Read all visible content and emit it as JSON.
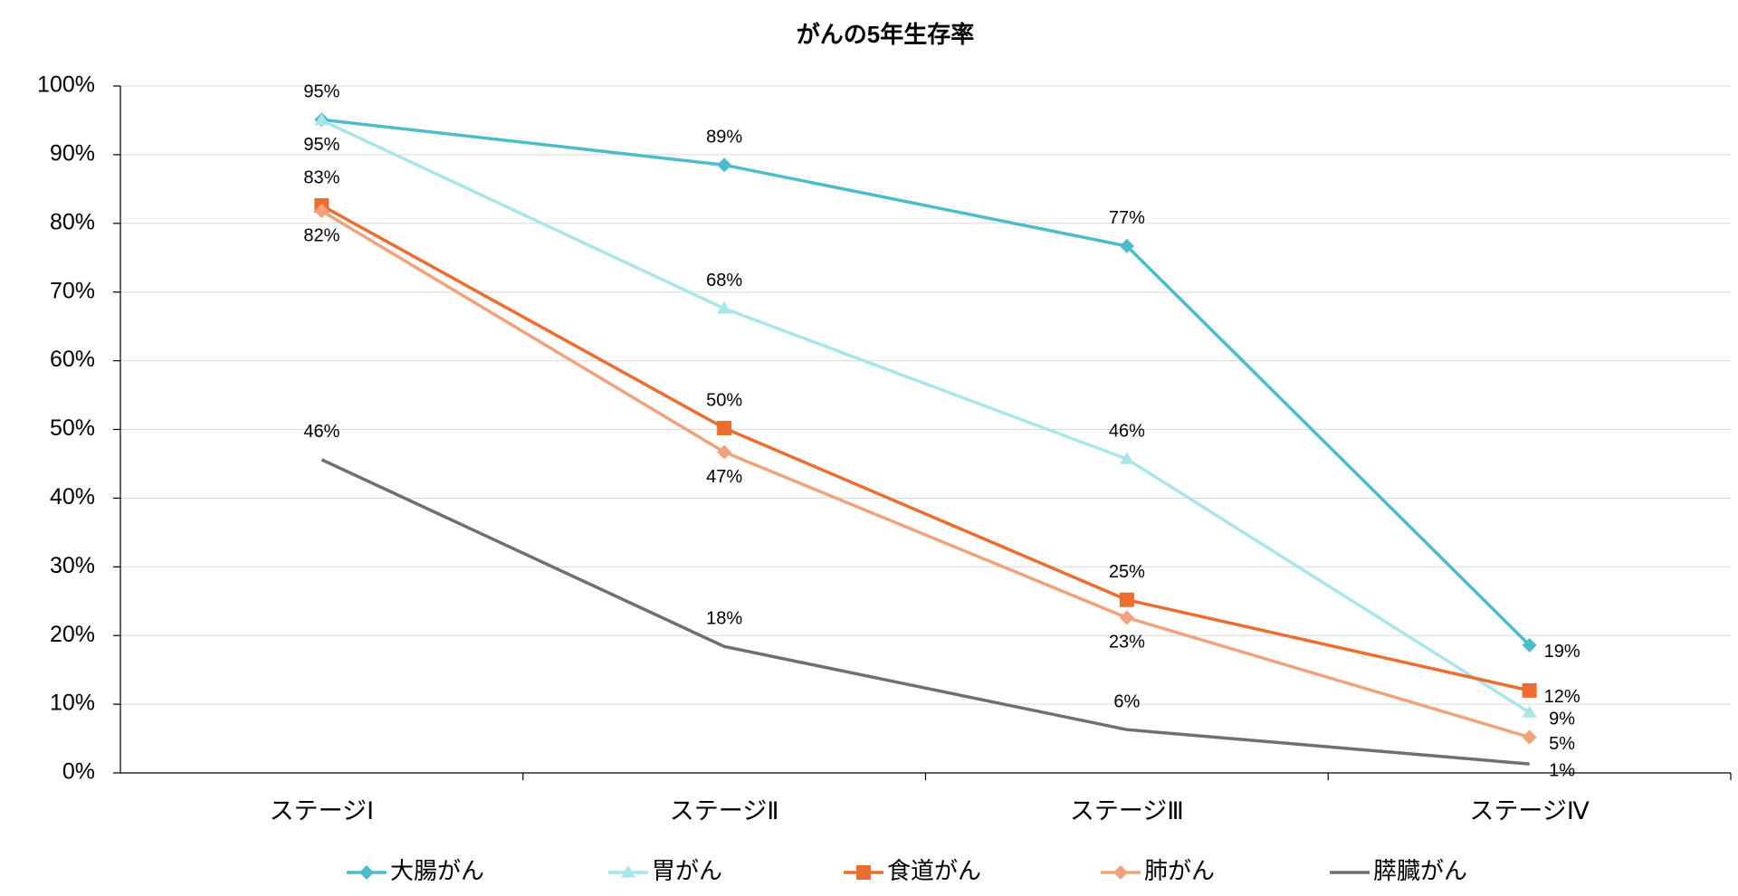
{
  "chart_data": {
    "type": "line",
    "title": "がんの5年生存率",
    "categories": [
      "ステージⅠ",
      "ステージⅡ",
      "ステージⅢ",
      "ステージⅣ"
    ],
    "series": [
      {
        "name": "大腸がん",
        "color": "#4bbccc",
        "marker": "diamond",
        "values": [
          95.1,
          88.5,
          76.7,
          18.6
        ],
        "value_labels": [
          "95%",
          "89%",
          "77%",
          "19%"
        ]
      },
      {
        "name": "胃がん",
        "color": "#a8e6ea",
        "marker": "triangle",
        "values": [
          95.0,
          67.6,
          45.7,
          8.8
        ],
        "value_labels": [
          "95%",
          "68%",
          "46%",
          "9%"
        ]
      },
      {
        "name": "食道がん",
        "color": "#ec6d2f",
        "marker": "square",
        "values": [
          82.6,
          50.2,
          25.2,
          12.0
        ],
        "value_labels": [
          "83%",
          "50%",
          "25%",
          "12%"
        ]
      },
      {
        "name": "肺がん",
        "color": "#f0a37b",
        "marker": "diamond",
        "values": [
          81.8,
          46.7,
          22.6,
          5.2
        ],
        "value_labels": [
          "82%",
          "47%",
          "23%",
          "5%"
        ]
      },
      {
        "name": "膵臓がん",
        "color": "#6f6f6f",
        "marker": "none",
        "values": [
          45.6,
          18.4,
          6.3,
          1.3
        ],
        "value_labels": [
          "46%",
          "18%",
          "6%",
          "1%"
        ]
      }
    ],
    "ylim": [
      0,
      100
    ],
    "yticks": [
      {
        "value": 0,
        "label": "0%"
      },
      {
        "value": 10,
        "label": "10%"
      },
      {
        "value": 20,
        "label": "20%"
      },
      {
        "value": 30,
        "label": "30%"
      },
      {
        "value": 40,
        "label": "40%"
      },
      {
        "value": 50,
        "label": "50%"
      },
      {
        "value": 60,
        "label": "60%"
      },
      {
        "value": 70,
        "label": "70%"
      },
      {
        "value": 80,
        "label": "80%"
      },
      {
        "value": 90,
        "label": "90%"
      },
      {
        "value": 100,
        "label": "100%"
      }
    ],
    "grid": true,
    "legend": "bottom"
  }
}
